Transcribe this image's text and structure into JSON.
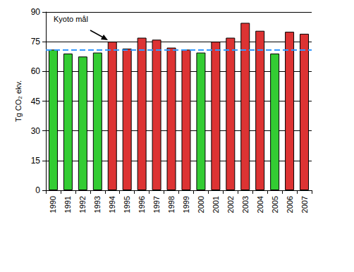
{
  "chart_data": {
    "type": "bar",
    "y_label": "Tg CO₂ ekv.",
    "categories": [
      "1990",
      "1991",
      "1992",
      "1993",
      "1994",
      "1995",
      "1996",
      "1997",
      "1998",
      "1999",
      "2000",
      "2001",
      "2002",
      "2003",
      "2004",
      "2005",
      "2006",
      "2007"
    ],
    "values": [
      71,
      69,
      67.5,
      69.5,
      75,
      71.5,
      77,
      76,
      72,
      71,
      69.5,
      75,
      77,
      84.5,
      80.5,
      69,
      80,
      79
    ],
    "colors": [
      "#33cc33",
      "#33cc33",
      "#33cc33",
      "#33cc33",
      "#dd3333",
      "#dd3333",
      "#dd3333",
      "#dd3333",
      "#dd3333",
      "#dd3333",
      "#33cc33",
      "#dd3333",
      "#dd3333",
      "#dd3333",
      "#dd3333",
      "#33cc33",
      "#dd3333",
      "#dd3333"
    ],
    "target": {
      "label": "Kyoto mål",
      "value": 71,
      "color": "#3399ff",
      "line_style": "dashed"
    },
    "ylim": [
      0,
      90
    ],
    "yticks": [
      0,
      15,
      30,
      45,
      60,
      75,
      90
    ],
    "grid": true
  }
}
